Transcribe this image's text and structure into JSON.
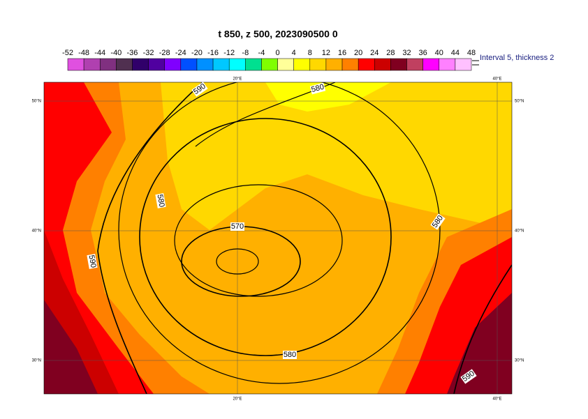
{
  "title": "t 850, z 500, 2023090500 0",
  "colorbar": {
    "ticks": [
      -52,
      -48,
      -44,
      -40,
      -36,
      -32,
      -28,
      -24,
      -20,
      -16,
      -12,
      -8,
      -4,
      0,
      4,
      8,
      12,
      16,
      20,
      24,
      28,
      32,
      36,
      40,
      44,
      48
    ],
    "colors": [
      "#e050e0",
      "#b040b0",
      "#803080",
      "#503050",
      "#30006a",
      "#5000a0",
      "#8000ff",
      "#0050ff",
      "#0090ff",
      "#00c8ff",
      "#00ffff",
      "#00e090",
      "#80ff00",
      "#ffff99",
      "#ffff00",
      "#ffd800",
      "#ffb000",
      "#ff8000",
      "#ff0000",
      "#cc0000",
      "#800020",
      "#c04060",
      "#ff00ff",
      "#ff80ff",
      "#ffc0ff"
    ],
    "note": "Interval 5, thickness 2"
  },
  "lat_labels": [
    "50°N",
    "40°N",
    "30°N"
  ],
  "lon_labels": [
    "20°E",
    "40°E"
  ],
  "contour_labels": [
    "590",
    "580",
    "580",
    "570",
    "580",
    "590",
    "580",
    "590"
  ]
}
